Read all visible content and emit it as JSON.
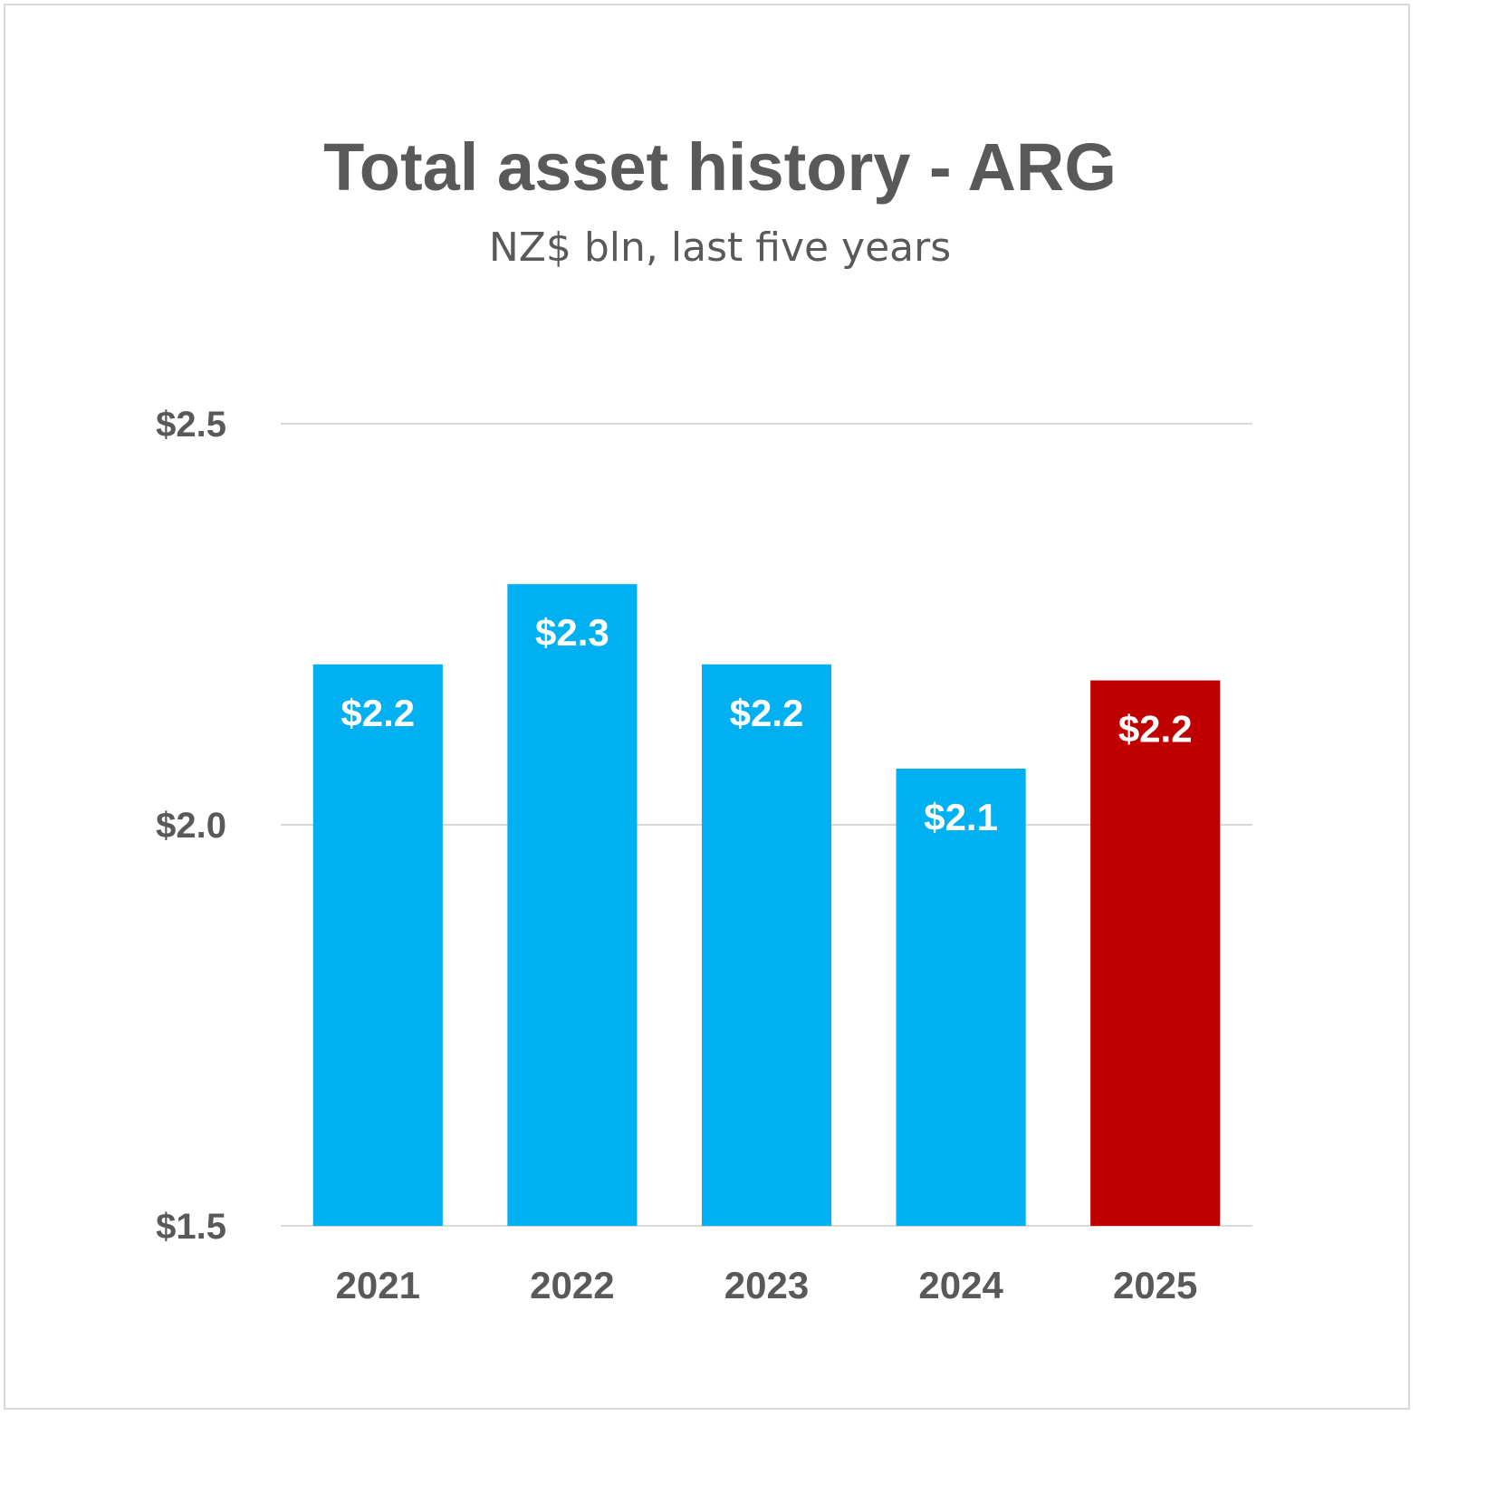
{
  "chart_data": {
    "type": "bar",
    "title": "Total asset history - ARG",
    "subtitle": "NZ$ bln, last five years",
    "categories": [
      "2021",
      "2022",
      "2023",
      "2024",
      "2025"
    ],
    "values": [
      2.2,
      2.3,
      2.2,
      2.07,
      2.18
    ],
    "data_labels": [
      "$2.2",
      "$2.3",
      "$2.2",
      "$2.1",
      "$2.2"
    ],
    "ylim": [
      1.5,
      2.5
    ],
    "yticks": [
      1.5,
      2.0,
      2.5
    ],
    "ytick_labels": [
      "$1.5",
      "$2.0",
      "$2.5"
    ],
    "grid": true,
    "legend": "none",
    "colors": {
      "default_bar": "#00b0f0",
      "highlight_bar": "#c00000",
      "text": "#595959",
      "gridline": "#d9d9d9"
    },
    "highlight_index": 4
  }
}
